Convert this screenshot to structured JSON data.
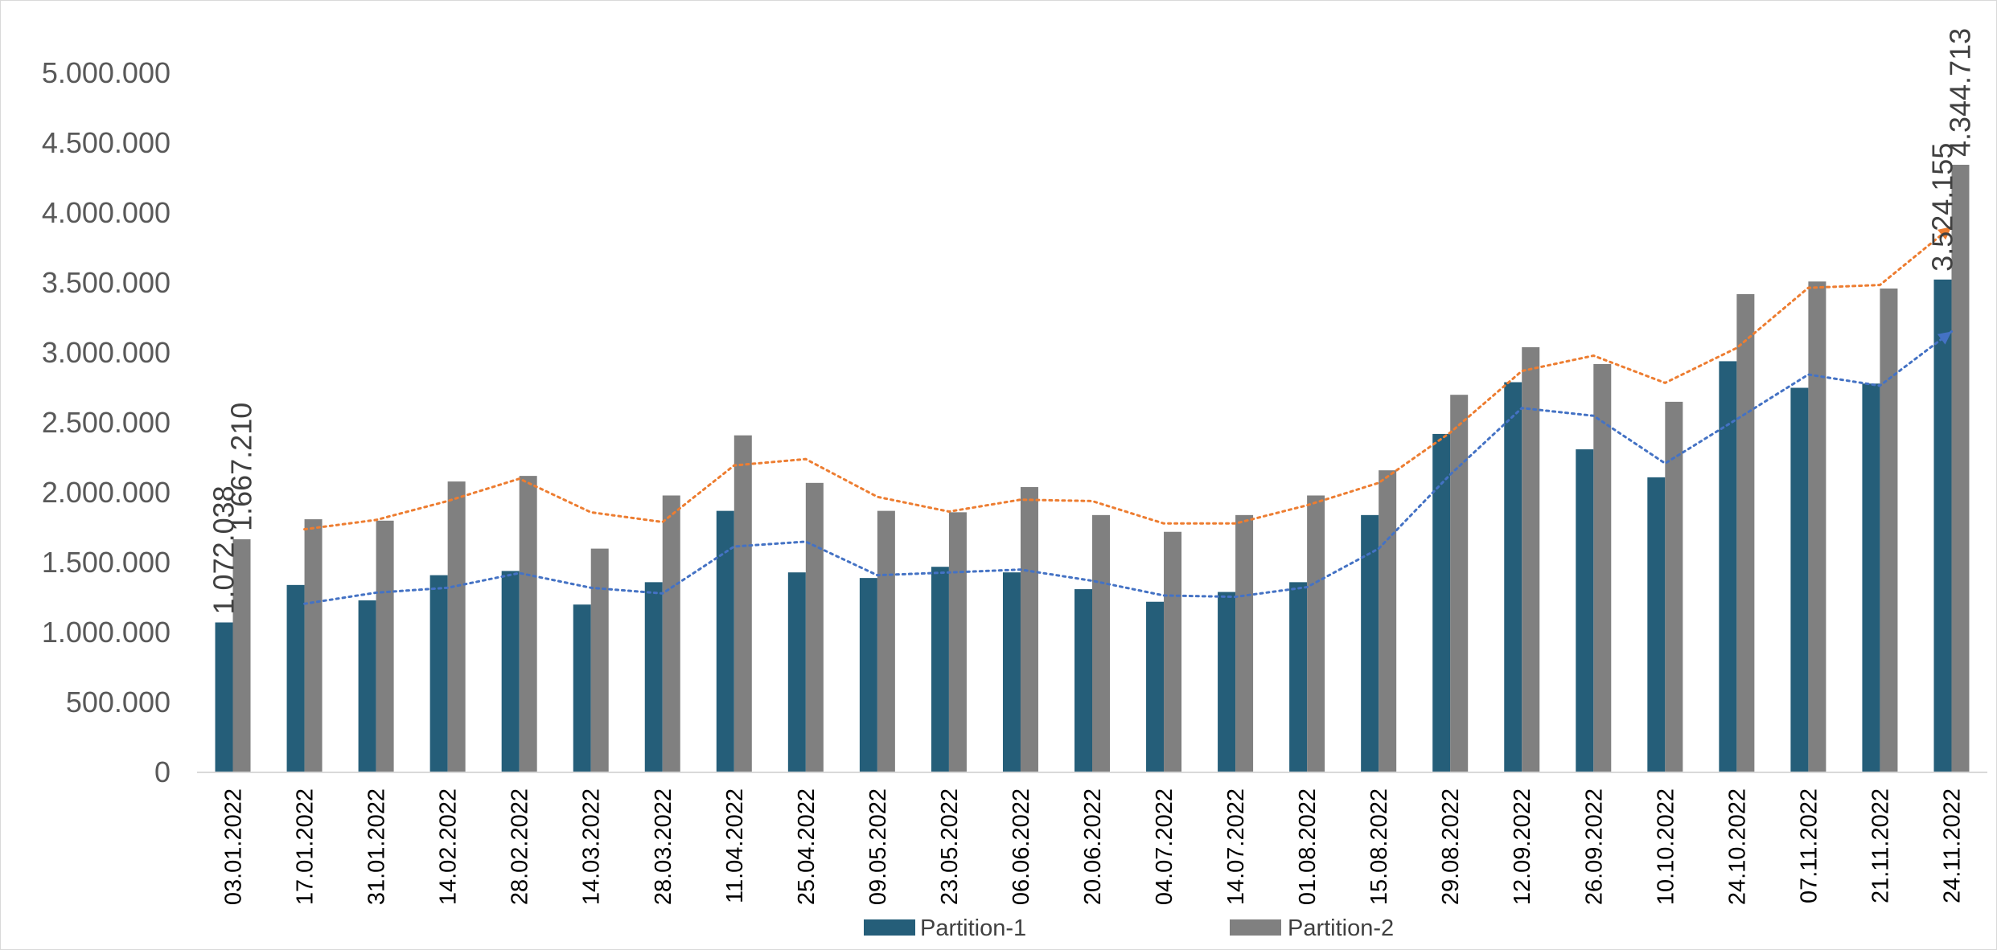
{
  "chart_data": {
    "type": "bar",
    "title": "",
    "xlabel": "",
    "ylabel": "",
    "ylim": [
      0,
      5000000
    ],
    "yticks": [
      0,
      500000,
      1000000,
      1500000,
      2000000,
      2500000,
      3000000,
      3500000,
      4000000,
      4500000,
      5000000
    ],
    "ytick_labels": [
      "0",
      "500.000",
      "1.000.000",
      "1.500.000",
      "2.000.000",
      "2.500.000",
      "3.000.000",
      "3.500.000",
      "4.000.000",
      "4.500.000",
      "5.000.000"
    ],
    "grid": false,
    "legend_position": "bottom",
    "categories": [
      "03.01.2022",
      "17.01.2022",
      "31.01.2022",
      "14.02.2022",
      "28.02.2022",
      "14.03.2022",
      "28.03.2022",
      "11.04.2022",
      "25.04.2022",
      "09.05.2022",
      "23.05.2022",
      "06.06.2022",
      "20.06.2022",
      "04.07.2022",
      "14.07.2022",
      "01.08.2022",
      "15.08.2022",
      "29.08.2022",
      "12.09.2022",
      "26.09.2022",
      "10.10.2022",
      "24.10.2022",
      "07.11.2022",
      "21.11.2022",
      "24.11.2022"
    ],
    "series": [
      {
        "name": "Partition-1",
        "color": "#255e79",
        "values": [
          1072038,
          1340000,
          1230000,
          1410000,
          1440000,
          1200000,
          1360000,
          1870000,
          1430000,
          1390000,
          1470000,
          1430000,
          1310000,
          1220000,
          1290000,
          1360000,
          1840000,
          2420000,
          2790000,
          2310000,
          2110000,
          2940000,
          2750000,
          2780000,
          3524155
        ],
        "trendline": {
          "style": "dotted",
          "color": "#4472c4",
          "period": 2
        }
      },
      {
        "name": "Partition-2",
        "color": "#808080",
        "values": [
          1667210,
          1810000,
          1800000,
          2080000,
          2120000,
          1600000,
          1980000,
          2410000,
          2070000,
          1870000,
          1860000,
          2040000,
          1840000,
          1720000,
          1840000,
          1980000,
          2160000,
          2700000,
          3040000,
          2920000,
          2650000,
          3420000,
          3510000,
          3460000,
          4344713
        ],
        "trendline": {
          "style": "dotted",
          "color": "#ed7d31",
          "period": 2
        }
      }
    ],
    "data_labels": [
      {
        "series": 0,
        "index": 0,
        "text": "1.072.038"
      },
      {
        "series": 1,
        "index": 0,
        "text": "1.667.210"
      },
      {
        "series": 0,
        "index": 24,
        "text": "3.524.155"
      },
      {
        "series": 1,
        "index": 24,
        "text": "4.344.713"
      }
    ]
  }
}
